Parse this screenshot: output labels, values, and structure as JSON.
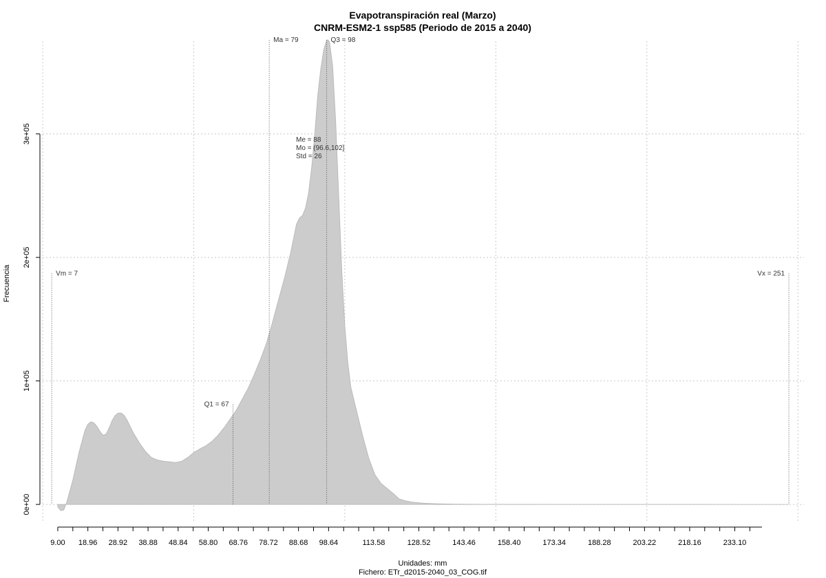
{
  "chart_data": {
    "type": "area",
    "title": "Evapotranspiración real (Marzo)",
    "subtitle": "CNRM-ESM2-1 ssp585 (Periodo de 2015 a 2040)",
    "xlabel": "Unidades: mm",
    "ylabel": "Frecuencia",
    "caption": "Fichero: ETr_d2015-2040_03_COG.tif",
    "xlim": [
      4,
      256
    ],
    "ylim": [
      -15000,
      375000
    ],
    "grid": true,
    "x_ticks": [
      9.0,
      18.96,
      28.92,
      38.88,
      48.84,
      58.8,
      68.76,
      78.72,
      88.68,
      98.64,
      113.58,
      128.52,
      143.46,
      158.4,
      173.34,
      188.28,
      203.22,
      218.16,
      233.1
    ],
    "x_tick_labels": [
      "9.00",
      "18.96",
      "28.92",
      "38.88",
      "48.84",
      "58.80",
      "68.76",
      "78.72",
      "88.68",
      "98.64",
      "113.58",
      "128.52",
      "143.46",
      "158.40",
      "173.34",
      "188.28",
      "203.22",
      "218.16",
      "233.10"
    ],
    "y_ticks": [
      0,
      100000,
      200000,
      300000
    ],
    "y_tick_labels": [
      "0e+00",
      "1e+05",
      "2e+05",
      "3e+05"
    ],
    "x_grid": [
      4,
      54,
      104,
      154,
      204,
      254
    ],
    "x": [
      9,
      10,
      11,
      12,
      14,
      16,
      18,
      19,
      20,
      21,
      22,
      23,
      24,
      25,
      26,
      27,
      28,
      29,
      30,
      31,
      32,
      33,
      34,
      36,
      38,
      40,
      42,
      44,
      46,
      48,
      50,
      52,
      54,
      56,
      58,
      60,
      62,
      64,
      66,
      68,
      70,
      72,
      74,
      76,
      78,
      80,
      82,
      84,
      86,
      87,
      88,
      89,
      90,
      91,
      92,
      93,
      94,
      95,
      96,
      97,
      98,
      98.5,
      99,
      100,
      101,
      102,
      103,
      104,
      105,
      106,
      108,
      110,
      112,
      114,
      116,
      118,
      120,
      122,
      124,
      126,
      128,
      130,
      135,
      140,
      150,
      160,
      180,
      200,
      220,
      240,
      251
    ],
    "values": [
      -2000,
      -5000,
      -4500,
      2000,
      20000,
      42000,
      60000,
      65000,
      67000,
      66000,
      63000,
      59000,
      56000,
      57000,
      62000,
      68000,
      72000,
      74000,
      74000,
      72000,
      68000,
      63000,
      58000,
      50000,
      43000,
      38000,
      36000,
      35000,
      34500,
      34000,
      35000,
      38000,
      42000,
      45000,
      47500,
      51000,
      56000,
      62000,
      69000,
      76000,
      85000,
      94000,
      105000,
      117000,
      130000,
      147000,
      165000,
      183000,
      203000,
      215000,
      227000,
      232000,
      234000,
      240000,
      252000,
      272000,
      298000,
      330000,
      352000,
      368000,
      376000,
      376000,
      374000,
      355000,
      310000,
      250000,
      190000,
      145000,
      115000,
      95000,
      75000,
      55000,
      37000,
      24000,
      17000,
      13000,
      9000,
      4500,
      3000,
      2000,
      1500,
      1000,
      500,
      200,
      100,
      80,
      50,
      30,
      20,
      10,
      0
    ],
    "fill_color": "#cccccc",
    "annotations": [
      {
        "label": "Vm = 7",
        "x": 7,
        "y": 187000,
        "anchor": "start",
        "line": true
      },
      {
        "label": "Q1 = 67",
        "x": 67,
        "y": 81000,
        "anchor": "end",
        "line": true
      },
      {
        "label": "Ma = 79",
        "x": 79,
        "y": 376000,
        "anchor": "start",
        "line": true
      },
      {
        "label": "Q3 = 98",
        "x": 98,
        "y": 376000,
        "anchor": "start",
        "line": true
      },
      {
        "label": "Vx = 251",
        "x": 251,
        "y": 187000,
        "anchor": "end",
        "line": true
      }
    ],
    "stats_box": [
      "Me = 88",
      "Mo = (96.6,102]",
      "Std = 26"
    ]
  }
}
